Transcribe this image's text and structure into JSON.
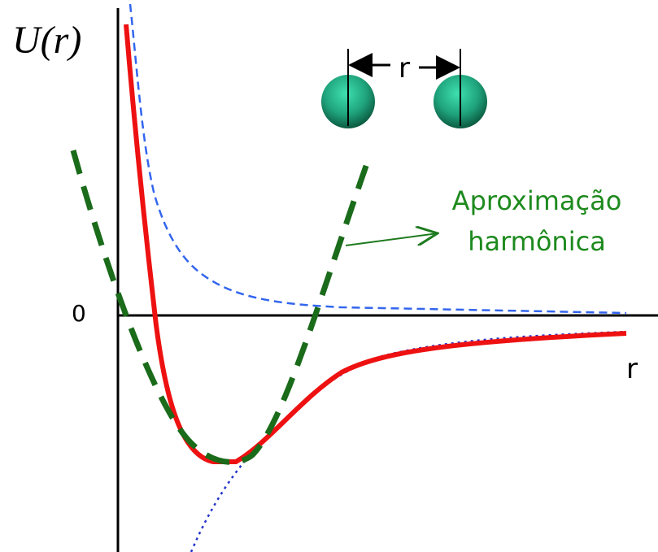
{
  "axis": {
    "y_label": "U(r)",
    "origin": "0",
    "x_label": "r"
  },
  "molecule": {
    "distance_label": "r"
  },
  "annotation": {
    "lines": [
      "Aproximação",
      "harmônica"
    ]
  }
}
